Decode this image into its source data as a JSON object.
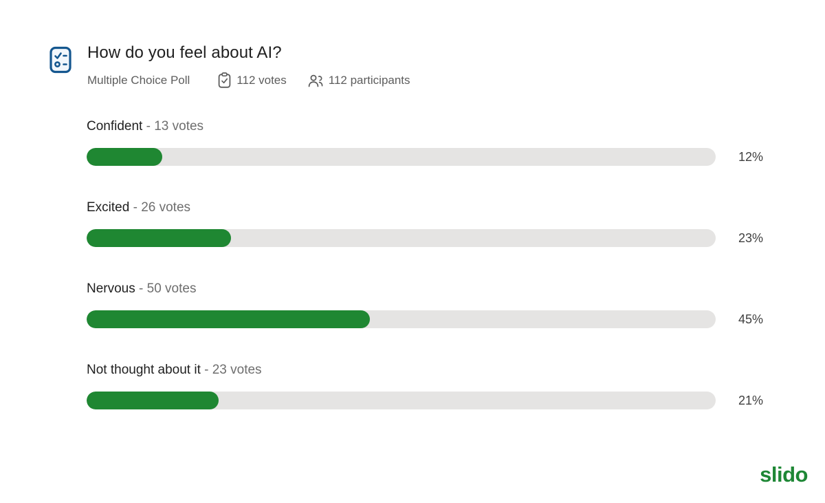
{
  "poll": {
    "title": "How do you feel about AI?",
    "type_label": "Multiple Choice Poll",
    "votes_summary": "112 votes",
    "participants_summary": "112 participants"
  },
  "options": [
    {
      "name": "Confident",
      "votes_text": "- 13 votes",
      "percent": 12,
      "percent_label": "12%"
    },
    {
      "name": "Excited",
      "votes_text": "- 26 votes",
      "percent": 23,
      "percent_label": "23%"
    },
    {
      "name": "Nervous",
      "votes_text": "- 50 votes",
      "percent": 45,
      "percent_label": "45%"
    },
    {
      "name": "Not thought about it",
      "votes_text": "- 23 votes",
      "percent": 21,
      "percent_label": "21%"
    }
  ],
  "brand": {
    "logo_text": "slido"
  },
  "icons": {
    "poll_type": "multiple-choice-poll-icon",
    "votes": "clipboard-check-icon",
    "participants": "people-icon"
  },
  "colors": {
    "bar_fill_green": "#1f8732",
    "bar_track_gray": "#e5e4e3",
    "poll_icon_blue": "#15578f",
    "brand_green": "#1e8735",
    "title_text": "#1f1f1f",
    "meta_text": "#5d5d5d"
  },
  "chart_data": {
    "type": "bar",
    "orientation": "horizontal",
    "title": "How do you feel about AI?",
    "subtitle": "Multiple Choice Poll",
    "total_votes": 112,
    "participants": 112,
    "categories": [
      "Confident",
      "Excited",
      "Nervous",
      "Not thought about it"
    ],
    "series": [
      {
        "name": "Votes",
        "values": [
          13,
          26,
          50,
          23
        ]
      },
      {
        "name": "Percent",
        "values": [
          12,
          23,
          45,
          21
        ]
      }
    ],
    "value_suffix": "votes",
    "percent_axis_range": [
      0,
      100
    ],
    "grid": false,
    "legend": false,
    "bar_color": "#1f8732"
  }
}
